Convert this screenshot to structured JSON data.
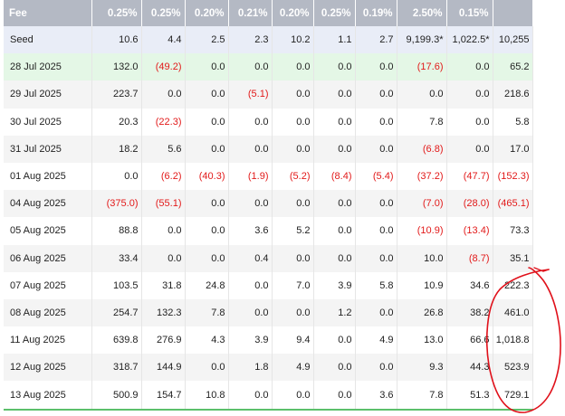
{
  "table": {
    "header": [
      "Fee",
      "0.25%",
      "0.25%",
      "0.20%",
      "0.21%",
      "0.20%",
      "0.25%",
      "0.19%",
      "2.50%",
      "0.15%",
      ""
    ],
    "rows": [
      {
        "style": "seed",
        "cells": [
          "Seed",
          "10.6",
          "4.4",
          "2.5",
          "2.3",
          "10.2",
          "1.1",
          "2.7",
          "9,199.3*",
          "1,022.5*",
          "10,255"
        ]
      },
      {
        "style": "hl",
        "cells": [
          "28 Jul 2025",
          "132.0",
          "(49.2)",
          "0.0",
          "0.0",
          "0.0",
          "0.0",
          "0.0",
          "(17.6)",
          "0.0",
          "65.2"
        ]
      },
      {
        "style": "shade",
        "cells": [
          "29 Jul 2025",
          "223.7",
          "0.0",
          "0.0",
          "(5.1)",
          "0.0",
          "0.0",
          "0.0",
          "0.0",
          "0.0",
          "218.6"
        ]
      },
      {
        "style": "plain",
        "cells": [
          "30 Jul 2025",
          "20.3",
          "(22.3)",
          "0.0",
          "0.0",
          "0.0",
          "0.0",
          "0.0",
          "7.8",
          "0.0",
          "5.8"
        ]
      },
      {
        "style": "shade",
        "cells": [
          "31 Jul 2025",
          "18.2",
          "5.6",
          "0.0",
          "0.0",
          "0.0",
          "0.0",
          "0.0",
          "(6.8)",
          "0.0",
          "17.0"
        ]
      },
      {
        "style": "plain",
        "cells": [
          "01 Aug 2025",
          "0.0",
          "(6.2)",
          "(40.3)",
          "(1.9)",
          "(5.2)",
          "(8.4)",
          "(5.4)",
          "(37.2)",
          "(47.7)",
          "(152.3)"
        ]
      },
      {
        "style": "shade",
        "cells": [
          "04 Aug 2025",
          "(375.0)",
          "(55.1)",
          "0.0",
          "0.0",
          "0.0",
          "0.0",
          "0.0",
          "(7.0)",
          "(28.0)",
          "(465.1)"
        ]
      },
      {
        "style": "plain",
        "cells": [
          "05 Aug 2025",
          "88.8",
          "0.0",
          "0.0",
          "3.6",
          "5.2",
          "0.0",
          "0.0",
          "(10.9)",
          "(13.4)",
          "73.3"
        ]
      },
      {
        "style": "shade",
        "cells": [
          "06 Aug 2025",
          "33.4",
          "0.0",
          "0.0",
          "0.4",
          "0.0",
          "0.0",
          "0.0",
          "10.0",
          "(8.7)",
          "35.1"
        ]
      },
      {
        "style": "plain",
        "cells": [
          "07 Aug 2025",
          "103.5",
          "31.8",
          "24.8",
          "0.0",
          "7.0",
          "3.9",
          "5.8",
          "10.9",
          "34.6",
          "222.3"
        ]
      },
      {
        "style": "shade",
        "cells": [
          "08 Aug 2025",
          "254.7",
          "132.3",
          "7.8",
          "0.0",
          "0.0",
          "1.2",
          "0.0",
          "26.8",
          "38.2",
          "461.0"
        ]
      },
      {
        "style": "plain",
        "cells": [
          "11 Aug 2025",
          "639.8",
          "276.9",
          "4.3",
          "3.9",
          "9.4",
          "0.0",
          "4.9",
          "13.0",
          "66.6",
          "1,018.8"
        ]
      },
      {
        "style": "shade",
        "cells": [
          "12 Aug 2025",
          "318.7",
          "144.9",
          "0.0",
          "1.8",
          "4.9",
          "0.0",
          "0.0",
          "9.3",
          "44.3",
          "523.9"
        ]
      },
      {
        "style": "plain",
        "cells": [
          "13 Aug 2025",
          "500.9",
          "154.7",
          "10.8",
          "0.0",
          "0.0",
          "0.0",
          "3.6",
          "7.8",
          "51.3",
          "729.1"
        ]
      }
    ]
  },
  "colors": {
    "header_bg": "#b4b9c4",
    "negative": "#e21a1a",
    "seed_row_bg": "#e9edf7",
    "highlight_row_bg": "#e4f7e6",
    "annotation_stroke": "#e0101a"
  }
}
